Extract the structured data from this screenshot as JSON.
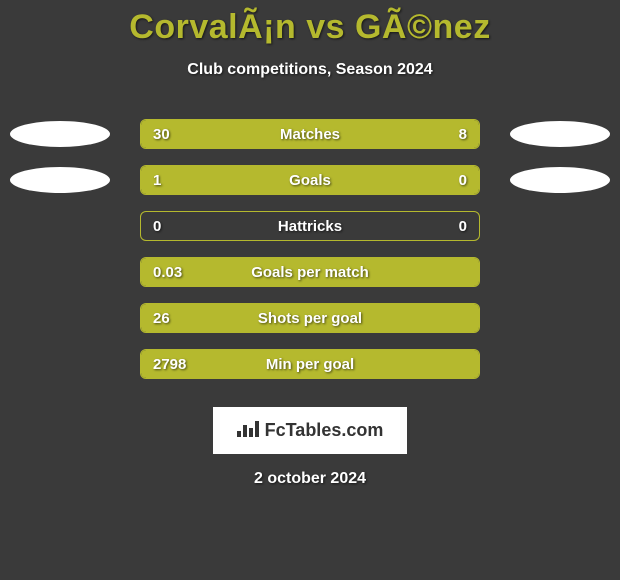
{
  "title": "CorvalÃ¡n vs GÃ©nez",
  "subtitle": "Club competitions, Season 2024",
  "date": "2 october 2024",
  "logo_text": "FcTables.com",
  "colors": {
    "accent": "#b5b92e",
    "background": "#3a3a3a",
    "ellipse": "#ffffff",
    "text": "#ffffff"
  },
  "rows": [
    {
      "label": "Matches",
      "left": "30",
      "right": "8",
      "fill_left_pct": 76,
      "fill_right_pct": 24,
      "show_ellipses": true
    },
    {
      "label": "Goals",
      "left": "1",
      "right": "0",
      "fill_left_pct": 77,
      "fill_right_pct": 23,
      "show_ellipses": true
    },
    {
      "label": "Hattricks",
      "left": "0",
      "right": "0",
      "fill_left_pct": 0,
      "fill_right_pct": 0,
      "show_ellipses": false
    },
    {
      "label": "Goals per match",
      "left": "0.03",
      "right": "",
      "fill_left_pct": 100,
      "fill_right_pct": 0,
      "show_ellipses": false
    },
    {
      "label": "Shots per goal",
      "left": "26",
      "right": "",
      "fill_left_pct": 100,
      "fill_right_pct": 0,
      "show_ellipses": false
    },
    {
      "label": "Min per goal",
      "left": "2798",
      "right": "",
      "fill_left_pct": 100,
      "fill_right_pct": 0,
      "show_ellipses": false
    }
  ]
}
